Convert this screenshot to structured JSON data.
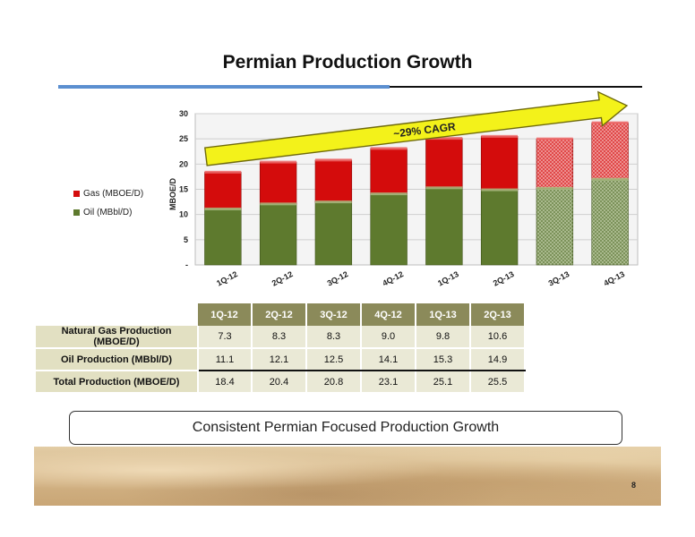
{
  "header": {
    "title": "Permian Production Growth"
  },
  "chart_data": {
    "type": "bar",
    "stacked": true,
    "categories": [
      "1Q-12",
      "2Q-12",
      "3Q-12",
      "4Q-12",
      "1Q-13",
      "2Q-13",
      "3Q-13",
      "4Q-13"
    ],
    "series": [
      {
        "name": "Oil (MBbl/D)",
        "values": [
          11.1,
          12.1,
          12.5,
          14.1,
          15.3,
          14.9,
          15.2,
          17.0
        ],
        "color": "#5e7a2e"
      },
      {
        "name": "Gas (MBOE/D)",
        "values": [
          7.3,
          8.3,
          8.3,
          9.0,
          9.8,
          10.6,
          9.8,
          11.2
        ],
        "color": "#d40c0c"
      }
    ],
    "projected_categories": [
      "3Q-13",
      "4Q-13"
    ],
    "ylabel": "MBOE/D",
    "ylim": [
      0,
      30
    ],
    "yticks": [
      "-",
      "5",
      "10",
      "15",
      "20",
      "25",
      "30"
    ],
    "grid": true,
    "legend_position": "left",
    "annotation": "~29% CAGR"
  },
  "table": {
    "headers": [
      "1Q-12",
      "2Q-12",
      "3Q-12",
      "4Q-12",
      "1Q-13",
      "2Q-13"
    ],
    "rows": [
      {
        "label": "Natural Gas Production (MBOE/D)",
        "values": [
          "7.3",
          "8.3",
          "8.3",
          "9.0",
          "9.8",
          "10.6"
        ]
      },
      {
        "label": "Oil Production (MBbl/D)",
        "values": [
          "11.1",
          "12.1",
          "12.5",
          "14.1",
          "15.3",
          "14.9"
        ]
      },
      {
        "label": "Total Production (MBOE/D)",
        "values": [
          "18.4",
          "20.4",
          "20.8",
          "23.1",
          "25.1",
          "25.5"
        ]
      }
    ]
  },
  "callout": "Consistent Permian Focused Production Growth",
  "page_number": "8"
}
